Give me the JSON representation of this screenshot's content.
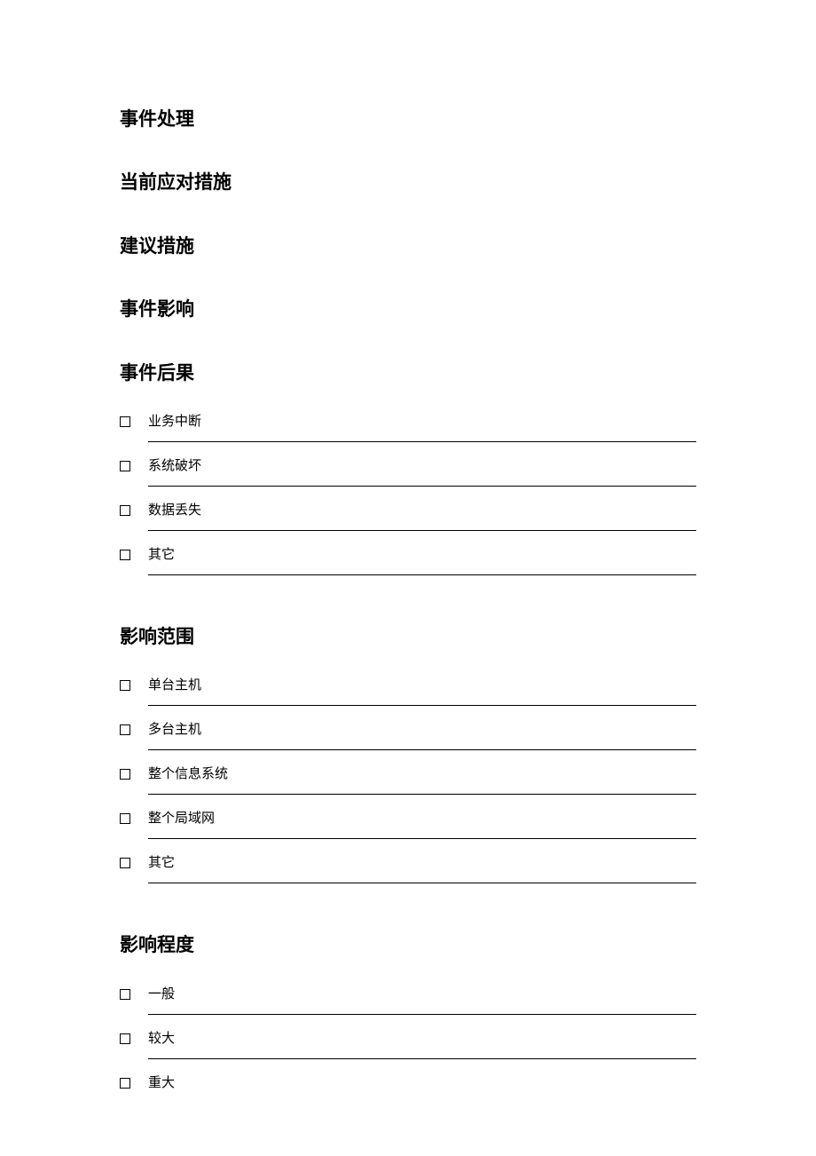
{
  "document": {
    "background_color": "#ffffff",
    "text_color": "#000000",
    "heading_fontsize": 21,
    "label_fontsize": 15,
    "sections": {
      "event_handling": {
        "title": "事件处理"
      },
      "current_measures": {
        "title": "当前应对措施"
      },
      "suggested_measures": {
        "title": "建议措施"
      },
      "event_impact": {
        "title": "事件影响"
      },
      "event_consequence": {
        "title": "事件后果",
        "options": [
          {
            "label": "业务中断",
            "checked": false
          },
          {
            "label": "系统破坏",
            "checked": false
          },
          {
            "label": "数据丢失",
            "checked": false
          },
          {
            "label": "其它",
            "checked": false
          }
        ]
      },
      "impact_scope": {
        "title": "影响范围",
        "options": [
          {
            "label": "单台主机",
            "checked": false
          },
          {
            "label": "多台主机",
            "checked": false
          },
          {
            "label": "整个信息系统",
            "checked": false
          },
          {
            "label": "整个局域网",
            "checked": false
          },
          {
            "label": "其它",
            "checked": false
          }
        ]
      },
      "impact_degree": {
        "title": "影响程度",
        "options": [
          {
            "label": "一般",
            "checked": false
          },
          {
            "label": "较大",
            "checked": false
          },
          {
            "label": "重大",
            "checked": false
          }
        ]
      }
    }
  }
}
